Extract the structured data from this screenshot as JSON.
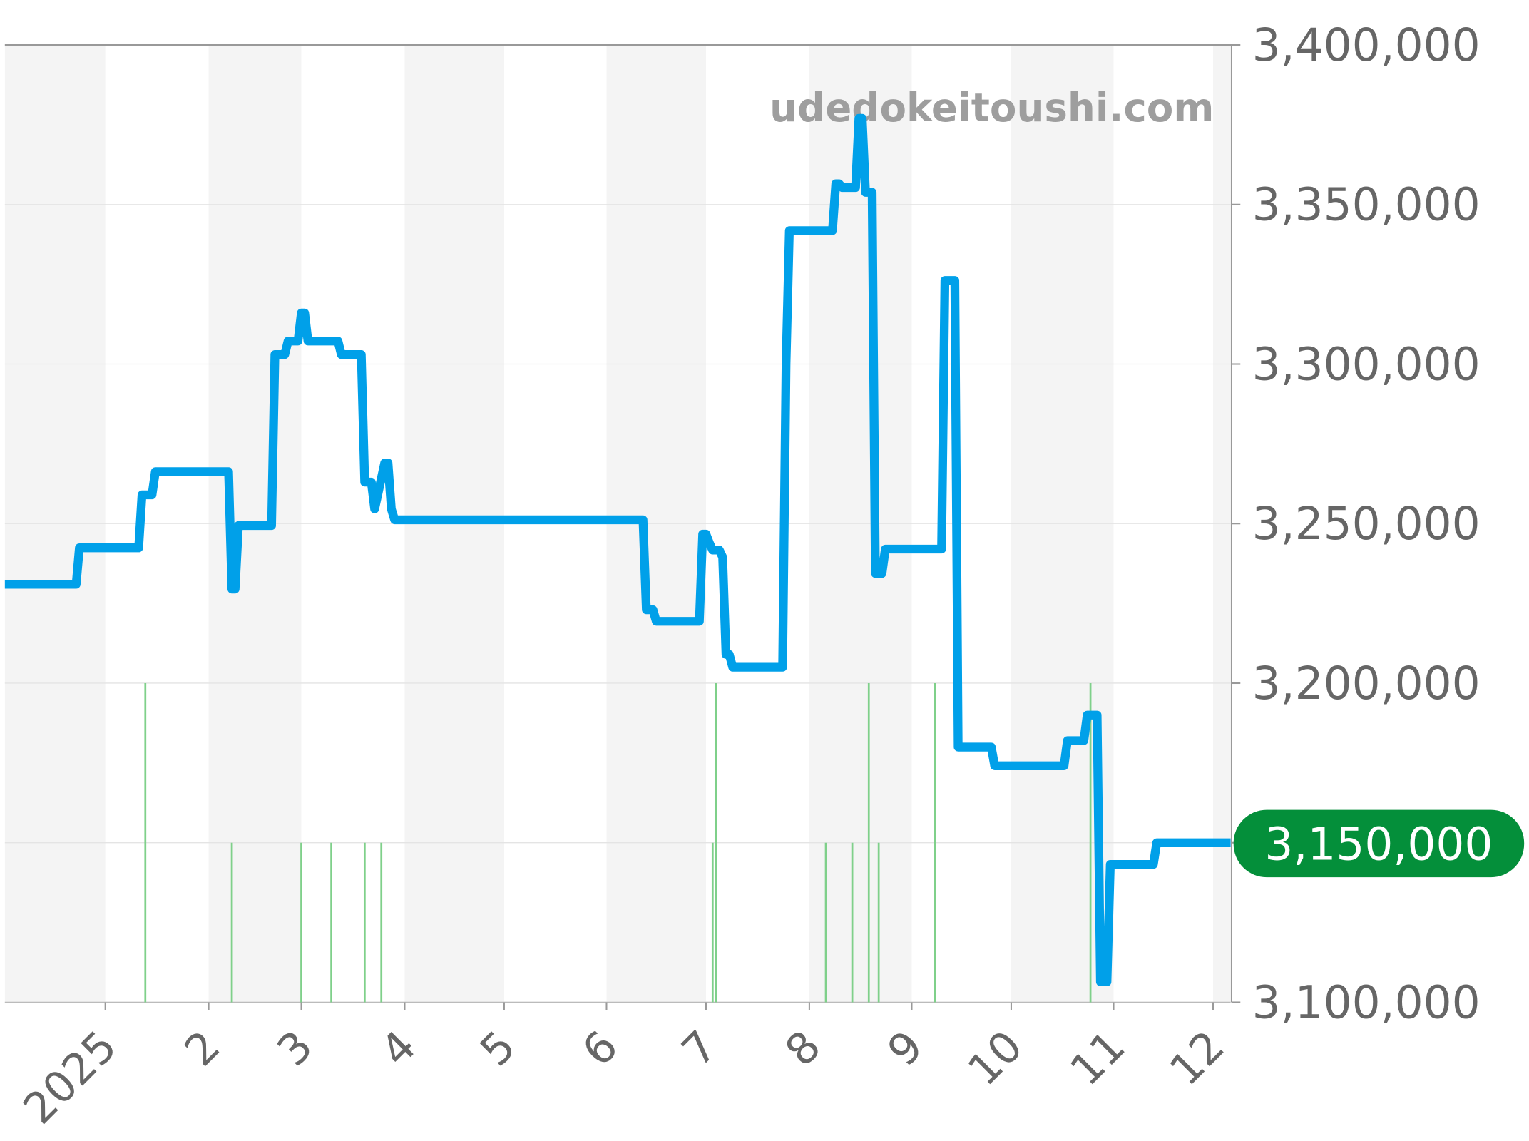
{
  "chart_data": {
    "type": "line",
    "watermark": "udedokeitoushi.com",
    "ylim": [
      3100000,
      3400000
    ],
    "y_ticks": [
      "3,100,000",
      "3,150,000",
      "3,200,000",
      "3,250,000",
      "3,300,000",
      "3,350,000",
      "3,400,000"
    ],
    "y_tick_values": [
      3100000,
      3150000,
      3200000,
      3250000,
      3300000,
      3350000,
      3400000
    ],
    "x_range": [
      "2024-12-01",
      "2025-12-06"
    ],
    "x_ticks": [
      {
        "date": "2025-01-01",
        "label": "2025"
      },
      {
        "date": "2025-02-01",
        "label": "2"
      },
      {
        "date": "2025-03-01",
        "label": "3"
      },
      {
        "date": "2025-04-01",
        "label": "4"
      },
      {
        "date": "2025-05-01",
        "label": "5"
      },
      {
        "date": "2025-06-01",
        "label": "6"
      },
      {
        "date": "2025-07-01",
        "label": "7"
      },
      {
        "date": "2025-08-01",
        "label": "8"
      },
      {
        "date": "2025-09-01",
        "label": "9"
      },
      {
        "date": "2025-10-01",
        "label": "10"
      },
      {
        "date": "2025-11-01",
        "label": "11"
      },
      {
        "date": "2025-12-01",
        "label": "12"
      }
    ],
    "grid": true,
    "alternating_month_bands": true,
    "line_color": "#00a0e9",
    "bar_color": "#7fd08a",
    "badge_color": "#048f3a",
    "current_value_label": "3,150,000",
    "series": [
      {
        "points": [
          [
            "2024-12-01",
            3231000
          ],
          [
            "2024-12-23",
            3231000
          ],
          [
            "2024-12-24",
            3242400
          ],
          [
            "2025-01-11",
            3242400
          ],
          [
            "2025-01-12",
            3259000
          ],
          [
            "2025-01-15",
            3259000
          ],
          [
            "2025-01-16",
            3266300
          ],
          [
            "2025-02-07",
            3266300
          ],
          [
            "2025-02-08",
            3229500
          ],
          [
            "2025-02-09",
            3229500
          ],
          [
            "2025-02-10",
            3249400
          ],
          [
            "2025-02-20",
            3249400
          ],
          [
            "2025-02-21",
            3303000
          ],
          [
            "2025-02-24",
            3303000
          ],
          [
            "2025-02-25",
            3307200
          ],
          [
            "2025-02-28",
            3307200
          ],
          [
            "2025-03-01",
            3316000
          ],
          [
            "2025-03-02",
            3316000
          ],
          [
            "2025-03-03",
            3307200
          ],
          [
            "2025-03-12",
            3307200
          ],
          [
            "2025-03-13",
            3303000
          ],
          [
            "2025-03-19",
            3303000
          ],
          [
            "2025-03-20",
            3263000
          ],
          [
            "2025-03-22",
            3263000
          ],
          [
            "2025-03-23",
            3254600
          ],
          [
            "2025-03-26",
            3269000
          ],
          [
            "2025-03-27",
            3269000
          ],
          [
            "2025-03-28",
            3254600
          ],
          [
            "2025-03-29",
            3251200
          ],
          [
            "2025-06-12",
            3251200
          ],
          [
            "2025-06-13",
            3223000
          ],
          [
            "2025-06-15",
            3223000
          ],
          [
            "2025-06-16",
            3219400
          ],
          [
            "2025-06-29",
            3219400
          ],
          [
            "2025-06-30",
            3246700
          ],
          [
            "2025-07-01",
            3246700
          ],
          [
            "2025-07-02",
            3244000
          ],
          [
            "2025-07-03",
            3241700
          ],
          [
            "2025-07-05",
            3241700
          ],
          [
            "2025-07-06",
            3239500
          ],
          [
            "2025-07-07",
            3209000
          ],
          [
            "2025-07-08",
            3209000
          ],
          [
            "2025-07-09",
            3205000
          ],
          [
            "2025-07-24",
            3205000
          ],
          [
            "2025-07-25",
            3300000
          ],
          [
            "2025-07-26",
            3341800
          ],
          [
            "2025-08-08",
            3341800
          ],
          [
            "2025-08-09",
            3356500
          ],
          [
            "2025-08-10",
            3356500
          ],
          [
            "2025-08-11",
            3355300
          ],
          [
            "2025-08-15",
            3355300
          ],
          [
            "2025-08-16",
            3377000
          ],
          [
            "2025-08-17",
            3377000
          ],
          [
            "2025-08-18",
            3353800
          ],
          [
            "2025-08-20",
            3353800
          ],
          [
            "2025-08-21",
            3234400
          ],
          [
            "2025-08-23",
            3234400
          ],
          [
            "2025-08-24",
            3242000
          ],
          [
            "2025-09-10",
            3242000
          ],
          [
            "2025-09-11",
            3326200
          ],
          [
            "2025-09-14",
            3326200
          ],
          [
            "2025-09-15",
            3180000
          ],
          [
            "2025-09-25",
            3180000
          ],
          [
            "2025-09-26",
            3174100
          ],
          [
            "2025-10-17",
            3174100
          ],
          [
            "2025-10-18",
            3182000
          ],
          [
            "2025-10-23",
            3182000
          ],
          [
            "2025-10-24",
            3190000
          ],
          [
            "2025-10-27",
            3190000
          ],
          [
            "2025-10-28",
            3106400
          ],
          [
            "2025-10-30",
            3106400
          ],
          [
            "2025-10-31",
            3143200
          ],
          [
            "2025-11-13",
            3143200
          ],
          [
            "2025-11-14",
            3150000
          ],
          [
            "2025-12-06",
            3150000
          ]
        ]
      }
    ],
    "markers": [
      [
        "2025-01-13",
        2
      ],
      [
        "2025-02-08",
        1
      ],
      [
        "2025-03-01",
        1
      ],
      [
        "2025-03-10",
        1
      ],
      [
        "2025-03-20",
        1
      ],
      [
        "2025-03-25",
        1
      ],
      [
        "2025-07-03",
        1
      ],
      [
        "2025-07-04",
        2
      ],
      [
        "2025-08-06",
        1
      ],
      [
        "2025-08-14",
        1
      ],
      [
        "2025-08-19",
        2
      ],
      [
        "2025-08-22",
        1
      ],
      [
        "2025-09-08",
        2
      ],
      [
        "2025-10-25",
        2
      ]
    ]
  }
}
